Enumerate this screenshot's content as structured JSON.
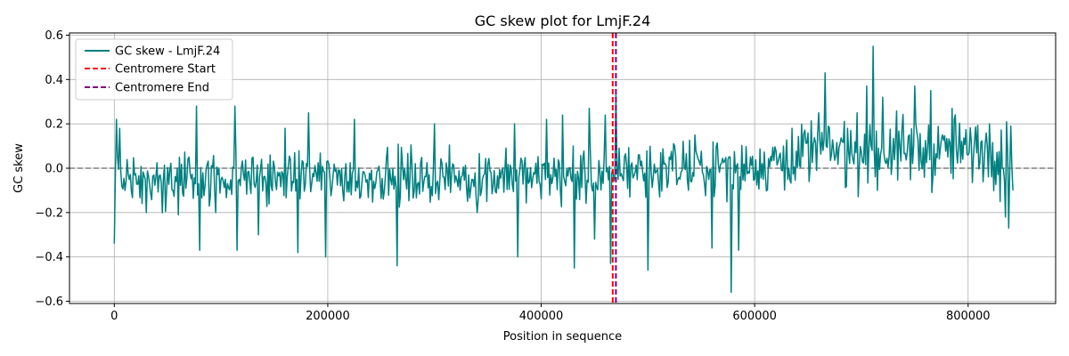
{
  "chart_data": {
    "type": "line",
    "title": "GC skew plot for LmjF.24",
    "xlabel": "Position in sequence",
    "ylabel": "GC skew",
    "xlim": [
      -42000,
      882000
    ],
    "ylim": [
      -0.61,
      0.61
    ],
    "x_ticks": [
      0,
      200000,
      400000,
      600000,
      800000
    ],
    "x_tick_labels": [
      "0",
      "200000",
      "400000",
      "600000",
      "800000"
    ],
    "y_ticks": [
      -0.6,
      -0.4,
      -0.2,
      0.0,
      0.2,
      0.4,
      0.6
    ],
    "y_tick_labels": [
      "−0.6",
      "−0.4",
      "−0.2",
      "0.0",
      "0.2",
      "0.4",
      "0.6"
    ],
    "grid": true,
    "legend_position": "top-left",
    "series": [
      {
        "name": "GC skew - LmjF.24",
        "color": "#008080",
        "window_step": 1000,
        "x_start": 0,
        "x_end": 842000,
        "points": [
          [
            0,
            -0.34
          ],
          [
            2000,
            0.22
          ],
          [
            3000,
            0.05
          ],
          [
            5000,
            0.18
          ],
          [
            10000,
            -0.1
          ],
          [
            30000,
            -0.2
          ],
          [
            60000,
            -0.21
          ],
          [
            76000,
            -0.07
          ],
          [
            77000,
            0.28
          ],
          [
            80000,
            -0.37
          ],
          [
            95000,
            -0.2
          ],
          [
            113000,
            0.28
          ],
          [
            115000,
            -0.37
          ],
          [
            135000,
            -0.3
          ],
          [
            160000,
            0.18
          ],
          [
            172000,
            -0.38
          ],
          [
            182000,
            0.25
          ],
          [
            198000,
            -0.4
          ],
          [
            225000,
            0.22
          ],
          [
            265000,
            -0.44
          ],
          [
            300000,
            0.2
          ],
          [
            340000,
            -0.2
          ],
          [
            375000,
            0.2
          ],
          [
            378000,
            -0.4
          ],
          [
            405000,
            0.22
          ],
          [
            420000,
            0.24
          ],
          [
            430000,
            0.1
          ],
          [
            431000,
            -0.45
          ],
          [
            445000,
            0.27
          ],
          [
            450000,
            -0.32
          ],
          [
            460000,
            0.24
          ],
          [
            465000,
            -0.43
          ],
          [
            470000,
            0.34
          ],
          [
            472000,
            -0.05
          ],
          [
            500000,
            -0.46
          ],
          [
            520000,
            0.05
          ],
          [
            560000,
            -0.36
          ],
          [
            575000,
            0.04
          ],
          [
            578000,
            -0.56
          ],
          [
            585000,
            -0.37
          ],
          [
            600000,
            -0.05
          ],
          [
            635000,
            0.18
          ],
          [
            660000,
            0.25
          ],
          [
            666000,
            0.43
          ],
          [
            690000,
            0.17
          ],
          [
            705000,
            0.37
          ],
          [
            711000,
            0.55
          ],
          [
            715000,
            -0.1
          ],
          [
            720000,
            0.32
          ],
          [
            745000,
            0.15
          ],
          [
            750000,
            0.37
          ],
          [
            765000,
            0.35
          ],
          [
            785000,
            0.27
          ],
          [
            800000,
            0.06
          ],
          [
            820000,
            0.2
          ],
          [
            830000,
            -0.15
          ],
          [
            835000,
            -0.22
          ],
          [
            838000,
            -0.27
          ],
          [
            840000,
            0.19
          ],
          [
            842000,
            -0.1
          ]
        ]
      },
      {
        "name": "Centromere Start",
        "type": "vline",
        "x": 467000,
        "color": "#ff0000",
        "style": "dashed"
      },
      {
        "name": "Centromere End",
        "type": "vline",
        "x": 470000,
        "color": "#800080",
        "style": "dashed"
      }
    ],
    "reference_line": {
      "y": 0.0,
      "color": "#808080",
      "style": "dashed"
    }
  }
}
